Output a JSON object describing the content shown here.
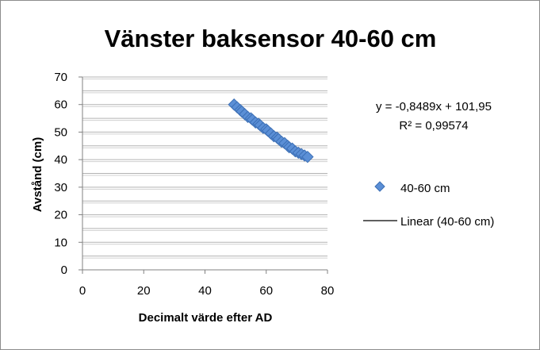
{
  "chart_data": {
    "type": "scatter",
    "title": "Vänster baksensor 40-60 cm",
    "xlabel": "Decimalt värde efter AD",
    "ylabel": "Avstånd (cm)",
    "xlim": [
      0,
      80
    ],
    "ylim": [
      0,
      70
    ],
    "x_ticks": [
      "0",
      "20",
      "40",
      "60",
      "80"
    ],
    "y_ticks": [
      "0",
      "10",
      "20",
      "30",
      "40",
      "50",
      "60",
      "70"
    ],
    "grid": "horizontal",
    "legend_placement": "right",
    "series": [
      {
        "name": "40-60 cm",
        "marker": "diamond",
        "color": "#5b8fd6",
        "x": [
          49.5,
          50.5,
          51.5,
          52,
          53,
          54,
          55,
          55.5,
          56.5,
          57.5,
          58,
          59,
          60,
          60.5,
          61.5,
          62.5,
          63.5,
          64,
          65,
          66,
          67,
          67.5,
          68.5,
          69.5,
          70.5,
          71.5,
          72.5,
          73.5
        ],
        "y": [
          60,
          59,
          58,
          57.5,
          56.5,
          55.5,
          55,
          54.5,
          53.5,
          53,
          52.5,
          51.5,
          51,
          50.5,
          49.5,
          48.5,
          48,
          47.5,
          46.5,
          46,
          45,
          44.5,
          44,
          43,
          42.5,
          42,
          41.5,
          41
        ]
      }
    ],
    "trendline": {
      "name": "Linear (40-60 cm)",
      "slope": -0.8489,
      "intercept": 101.95,
      "x_range": [
        50,
        73
      ],
      "color": "#000000"
    },
    "equation_label": "y = -0,8489x + 101,95",
    "r2_label": "R² = 0,99574"
  }
}
